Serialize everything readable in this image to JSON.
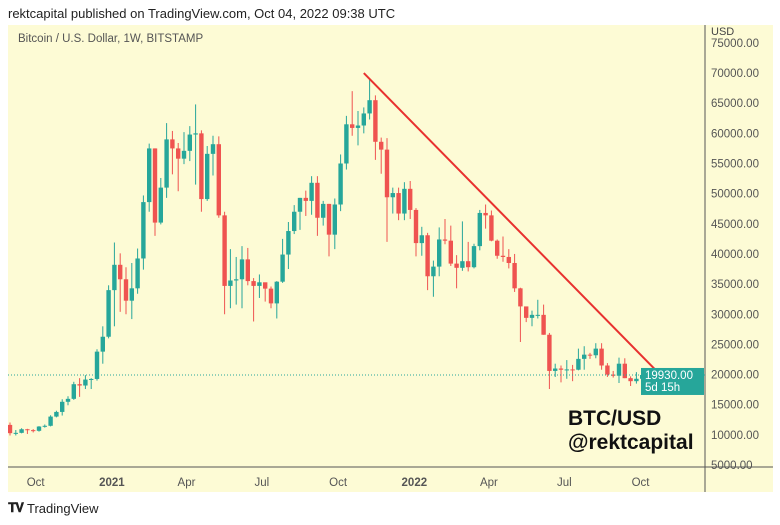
{
  "header": {
    "text": "rektcapital published on TradingView.com, Oct 04, 2022 09:38 UTC"
  },
  "symbol": {
    "text": "Bitcoin / U.S. Dollar, 1W, BITSTAMP"
  },
  "watermark": {
    "line1": "BTC/USD",
    "line2": "@rektcapital"
  },
  "footer": {
    "logo": "TV",
    "brand": "TradingView"
  },
  "colors": {
    "up": "#26a69a",
    "down": "#ef5350",
    "trendline": "#e8312f",
    "background": "#fdfbd5",
    "price_label": "#26a69a"
  },
  "chart_data": {
    "type": "candlestick",
    "title": "Bitcoin / U.S. Dollar, 1W, BITSTAMP",
    "currency_label": "USD",
    "ylim": [
      5000,
      75000
    ],
    "y_ticks": [
      "75000.00",
      "70000.00",
      "65000.00",
      "60000.00",
      "55000.00",
      "50000.00",
      "45000.00",
      "40000.00",
      "35000.00",
      "30000.00",
      "25000.00",
      "20000.00",
      "15000.00",
      "10000.00",
      "5000.00"
    ],
    "x_ticks": [
      {
        "label": "Oct",
        "date": "2020-10-01",
        "bold": false
      },
      {
        "label": "2021",
        "date": "2021-01-01",
        "bold": true
      },
      {
        "label": "Apr",
        "date": "2021-04-01",
        "bold": false
      },
      {
        "label": "Jul",
        "date": "2021-07-01",
        "bold": false
      },
      {
        "label": "Oct",
        "date": "2021-10-01",
        "bold": false
      },
      {
        "label": "2022",
        "date": "2022-01-01",
        "bold": true
      },
      {
        "label": "Apr",
        "date": "2022-04-01",
        "bold": false
      },
      {
        "label": "Jul",
        "date": "2022-07-01",
        "bold": false
      },
      {
        "label": "Oct",
        "date": "2022-10-01",
        "bold": false
      }
    ],
    "first_week": "2020-08-31",
    "candles_ohlc": [
      [
        11650,
        12050,
        9900,
        10280
      ],
      [
        10280,
        10800,
        9900,
        10330
      ],
      [
        10330,
        11100,
        10250,
        10930
      ],
      [
        10930,
        11000,
        10150,
        10780
      ],
      [
        10780,
        10950,
        10400,
        10670
      ],
      [
        10670,
        11450,
        10540,
        11380
      ],
      [
        11380,
        11720,
        11200,
        11500
      ],
      [
        11500,
        13250,
        11400,
        13030
      ],
      [
        13030,
        14000,
        12900,
        13800
      ],
      [
        13800,
        15900,
        13200,
        15480
      ],
      [
        15480,
        16400,
        14900,
        15970
      ],
      [
        15970,
        18800,
        15800,
        18400
      ],
      [
        18400,
        19400,
        16300,
        18180
      ],
      [
        18180,
        19900,
        17600,
        19170
      ],
      [
        19170,
        19400,
        17600,
        19270
      ],
      [
        19270,
        24200,
        19000,
        23800
      ],
      [
        23800,
        28000,
        21800,
        26270
      ],
      [
        26270,
        34800,
        26000,
        34000
      ],
      [
        34000,
        41900,
        28000,
        38200
      ],
      [
        38200,
        40100,
        30400,
        35800
      ],
      [
        35800,
        37800,
        30000,
        32250
      ],
      [
        32250,
        38500,
        29200,
        34300
      ],
      [
        34300,
        40900,
        33400,
        39250
      ],
      [
        39250,
        49700,
        37400,
        48600
      ],
      [
        48600,
        58300,
        47000,
        57500
      ],
      [
        57500,
        57500,
        43000,
        45200
      ],
      [
        45200,
        52600,
        44900,
        51000
      ],
      [
        51000,
        61700,
        49300,
        59000
      ],
      [
        59000,
        60400,
        53200,
        57500
      ],
      [
        57500,
        58400,
        50400,
        55800
      ],
      [
        55800,
        60200,
        54900,
        57100
      ],
      [
        57100,
        61200,
        55400,
        59800
      ],
      [
        59800,
        64800,
        51500,
        60000
      ],
      [
        60000,
        60500,
        47000,
        49100
      ],
      [
        49100,
        57900,
        48800,
        56600
      ],
      [
        56600,
        59600,
        53000,
        58200
      ],
      [
        58200,
        59500,
        46000,
        46400
      ],
      [
        46400,
        47000,
        30000,
        34700
      ],
      [
        34700,
        40800,
        31000,
        35600
      ],
      [
        35600,
        39500,
        31600,
        35800
      ],
      [
        35800,
        41300,
        31000,
        39100
      ],
      [
        39100,
        41000,
        34800,
        35500
      ],
      [
        35500,
        36000,
        28800,
        34700
      ],
      [
        34700,
        36600,
        32700,
        35300
      ],
      [
        35300,
        35100,
        32100,
        34250
      ],
      [
        34250,
        34600,
        31000,
        31800
      ],
      [
        31800,
        35500,
        29300,
        35400
      ],
      [
        35400,
        42500,
        35200,
        39900
      ],
      [
        39900,
        45300,
        37500,
        43800
      ],
      [
        43800,
        48100,
        43300,
        47000
      ],
      [
        47000,
        49300,
        44000,
        49300
      ],
      [
        49300,
        50500,
        46300,
        48800
      ],
      [
        48800,
        52900,
        46500,
        51800
      ],
      [
        51800,
        52900,
        43000,
        46000
      ],
      [
        46000,
        48800,
        44700,
        48300
      ],
      [
        48300,
        48300,
        39600,
        43200
      ],
      [
        43200,
        49200,
        40800,
        48200
      ],
      [
        48200,
        56500,
        47100,
        55000
      ],
      [
        55000,
        62900,
        54000,
        61500
      ],
      [
        61500,
        67000,
        59600,
        60900
      ],
      [
        60900,
        63700,
        58000,
        61300
      ],
      [
        61300,
        64300,
        60000,
        63300
      ],
      [
        63300,
        69000,
        62300,
        65500
      ],
      [
        65500,
        66300,
        55600,
        58600
      ],
      [
        58600,
        59300,
        53300,
        57300
      ],
      [
        57300,
        59200,
        42000,
        49400
      ],
      [
        49400,
        51000,
        46700,
        50100
      ],
      [
        50100,
        51000,
        45600,
        46700
      ],
      [
        46700,
        51900,
        45600,
        50800
      ],
      [
        50800,
        52100,
        45800,
        47300
      ],
      [
        47300,
        47600,
        39600,
        41800
      ],
      [
        41800,
        44500,
        39700,
        43100
      ],
      [
        43100,
        43500,
        34000,
        36300
      ],
      [
        36300,
        38900,
        32900,
        37900
      ],
      [
        37900,
        44400,
        36300,
        42400
      ],
      [
        42400,
        45800,
        41600,
        42200
      ],
      [
        42200,
        44700,
        38000,
        38400
      ],
      [
        38400,
        39800,
        34300,
        37700
      ],
      [
        37700,
        45400,
        37200,
        38800
      ],
      [
        38800,
        42000,
        37100,
        37800
      ],
      [
        37800,
        41700,
        37600,
        41300
      ],
      [
        41300,
        47300,
        40600,
        46800
      ],
      [
        46800,
        48200,
        44200,
        46400
      ],
      [
        46400,
        47200,
        42100,
        42200
      ],
      [
        42200,
        42400,
        39200,
        39700
      ],
      [
        39700,
        42900,
        38700,
        39500
      ],
      [
        39500,
        40800,
        37600,
        38500
      ],
      [
        38500,
        40000,
        33700,
        34300
      ],
      [
        34300,
        34400,
        25400,
        31300
      ],
      [
        31300,
        31000,
        28700,
        29400
      ],
      [
        29400,
        30600,
        28000,
        29900
      ],
      [
        29900,
        32400,
        29300,
        29900
      ],
      [
        29900,
        31600,
        26600,
        26600
      ],
      [
        26600,
        26900,
        17600,
        20600
      ],
      [
        20600,
        21800,
        19600,
        21000
      ],
      [
        21000,
        21500,
        18700,
        20800
      ],
      [
        20800,
        22400,
        19300,
        20850
      ],
      [
        20850,
        21600,
        18900,
        20800
      ],
      [
        20800,
        24300,
        20700,
        22600
      ],
      [
        22600,
        24700,
        20800,
        23300
      ],
      [
        23300,
        23600,
        22600,
        23200
      ],
      [
        23200,
        25200,
        22700,
        24300
      ],
      [
        24300,
        25200,
        20800,
        21500
      ],
      [
        21500,
        21900,
        19600,
        20000
      ],
      [
        20000,
        20600,
        19500,
        19800
      ],
      [
        19800,
        22800,
        18600,
        21800
      ],
      [
        21800,
        22700,
        19400,
        19400
      ],
      [
        19400,
        19700,
        18100,
        18900
      ],
      [
        18900,
        20400,
        18500,
        19300
      ],
      [
        19300,
        20500,
        19100,
        19930
      ]
    ],
    "last_price": {
      "value": "19930.00",
      "countdown": "5d 15h",
      "price": 19930
    },
    "trendline": {
      "from": {
        "date": "2021-11-01",
        "price": 70000
      },
      "to": {
        "date": "2022-10-31",
        "price": 19100
      }
    }
  }
}
